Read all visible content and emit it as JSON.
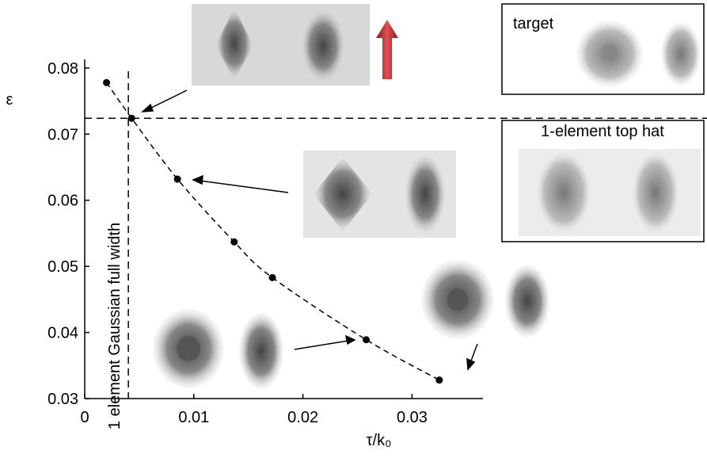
{
  "chart_data": {
    "type": "scatter",
    "xlabel": "τ/k₀",
    "ylabel": "ε",
    "x": [
      0.002,
      0.0043,
      0.0085,
      0.0137,
      0.0172,
      0.0258,
      0.0325
    ],
    "series": [
      {
        "color": "#000000",
        "values": [
          0.0778,
          0.0724,
          0.0632,
          0.0537,
          0.0483,
          0.0389,
          0.0328
        ]
      }
    ],
    "xlim": [
      0,
      0.0365
    ],
    "ylim": [
      0.03,
      0.0813
    ],
    "xticks": [
      0,
      0.01,
      0.02,
      0.03
    ],
    "yticks": [
      0.03,
      0.04,
      0.05,
      0.06,
      0.07,
      0.08
    ],
    "reference_x": 0.004,
    "reference_y": 0.0724,
    "reference_x_label": "1 element Gaussian full width",
    "annotations": [
      "target",
      "1-element top hat"
    ]
  }
}
